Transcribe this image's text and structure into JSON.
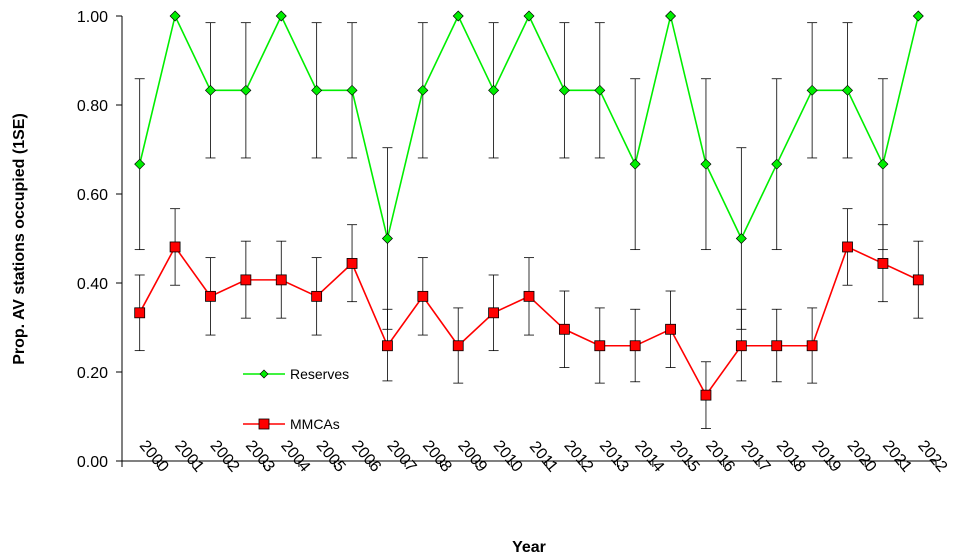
{
  "chart_data": {
    "type": "line",
    "xlabel": "Year",
    "ylabel": "Prop. AV stations occupied (1SE)",
    "ylim": [
      0,
      1
    ],
    "yticks": [
      "0.00",
      "0.20",
      "0.40",
      "0.60",
      "0.80",
      "1.00"
    ],
    "categories": [
      "2000",
      "2001",
      "2002",
      "2003",
      "2004",
      "2005",
      "2006",
      "2007",
      "2008",
      "2009",
      "2010",
      "2011",
      "2012",
      "2013",
      "2014",
      "2015",
      "2016",
      "2017",
      "2018",
      "2019",
      "2020",
      "2021",
      "2022"
    ],
    "grid": false,
    "legend_position": "inside-lower-left",
    "series": [
      {
        "name": "Reserves",
        "color": "#00ee00",
        "marker": "diamond",
        "values": [
          0.667,
          1.0,
          0.833,
          0.833,
          1.0,
          0.833,
          0.833,
          0.5,
          0.833,
          1.0,
          0.833,
          1.0,
          0.833,
          0.833,
          0.667,
          1.0,
          0.667,
          0.5,
          0.667,
          0.833,
          0.833,
          0.667,
          1.0
        ],
        "lower": [
          0.475,
          1.0,
          0.681,
          0.681,
          1.0,
          0.681,
          0.681,
          0.296,
          0.681,
          1.0,
          0.681,
          1.0,
          0.681,
          0.681,
          0.475,
          1.0,
          0.475,
          0.296,
          0.475,
          0.681,
          0.681,
          0.475,
          1.0
        ],
        "upper": [
          0.859,
          1.0,
          0.985,
          0.985,
          1.0,
          0.985,
          0.985,
          0.704,
          0.985,
          1.0,
          0.985,
          1.0,
          0.985,
          0.985,
          0.859,
          1.0,
          0.859,
          0.704,
          0.859,
          0.985,
          0.985,
          0.859,
          1.0
        ]
      },
      {
        "name": "MMCAs",
        "color": "#ff0000",
        "marker": "square",
        "values": [
          0.333,
          0.481,
          0.37,
          0.407,
          0.407,
          0.37,
          0.444,
          0.259,
          0.37,
          0.259,
          0.333,
          0.37,
          0.296,
          0.259,
          0.259,
          0.296,
          0.148,
          0.259,
          0.259,
          0.259,
          0.481,
          0.444,
          0.407
        ],
        "lower": [
          0.248,
          0.395,
          0.283,
          0.321,
          0.321,
          0.283,
          0.358,
          0.18,
          0.283,
          0.175,
          0.248,
          0.283,
          0.21,
          0.175,
          0.178,
          0.21,
          0.073,
          0.18,
          0.178,
          0.175,
          0.395,
          0.358,
          0.321
        ],
        "upper": [
          0.418,
          0.567,
          0.457,
          0.494,
          0.494,
          0.457,
          0.531,
          0.341,
          0.457,
          0.344,
          0.418,
          0.457,
          0.382,
          0.344,
          0.341,
          0.382,
          0.223,
          0.341,
          0.341,
          0.344,
          0.567,
          0.531,
          0.494
        ]
      }
    ]
  }
}
